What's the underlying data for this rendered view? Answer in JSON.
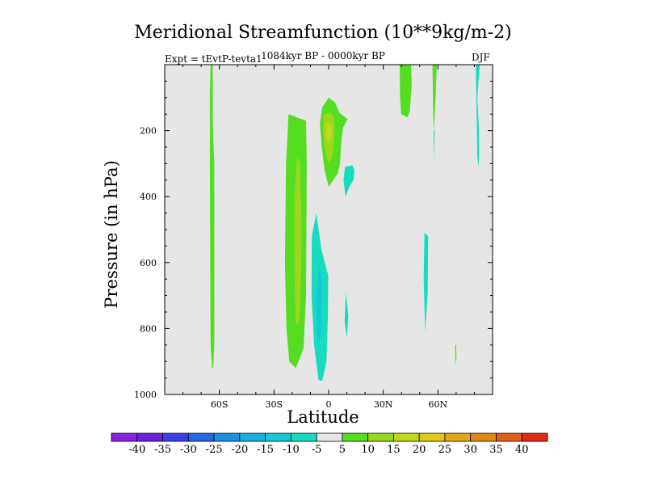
{
  "chart_data": {
    "type": "contour",
    "title": "Meridional Streamfunction (10**9kg/m-2)",
    "subtitle_left": "Expt = tEvtP-tevta1",
    "subtitle_center": "1084kyr BP - 0000kyr BP",
    "subtitle_right": "DJF",
    "xlabel": "Latitude",
    "ylabel": "Pressure (in hPa)",
    "xlim": [
      -90,
      90
    ],
    "ylim": [
      1000,
      0
    ],
    "x_ticks": [
      {
        "value": -60,
        "label": "60S"
      },
      {
        "value": -30,
        "label": "30S"
      },
      {
        "value": 0,
        "label": "0"
      },
      {
        "value": 30,
        "label": "30N"
      },
      {
        "value": 60,
        "label": "60N"
      }
    ],
    "y_ticks": [
      {
        "value": 200,
        "label": "200"
      },
      {
        "value": 400,
        "label": "400"
      },
      {
        "value": 600,
        "label": "600"
      },
      {
        "value": 800,
        "label": "800"
      },
      {
        "value": 1000,
        "label": "1000"
      }
    ],
    "colorbar": {
      "levels": [
        -40,
        -35,
        -30,
        -25,
        -20,
        -15,
        -10,
        -5,
        5,
        10,
        15,
        20,
        25,
        30,
        35,
        40
      ],
      "colors": [
        "#8B1FE0",
        "#6A1FD8",
        "#3B3FE0",
        "#2266E0",
        "#1C8FE0",
        "#18AEE0",
        "#14C8D8",
        "#18DCC0",
        "#E6E6E6",
        "#55DD22",
        "#99D81C",
        "#C2D81A",
        "#E0C814",
        "#E0A818",
        "#E08818",
        "#E06018",
        "#E02A10"
      ]
    },
    "background": "#E6E6E6",
    "regions": [
      {
        "level": 5,
        "color": "#55DD22",
        "points": [
          [
            -64.8,
            0
          ],
          [
            -63.6,
            0
          ],
          [
            -63.6,
            180
          ],
          [
            -62.8,
            300
          ],
          [
            -62.8,
            850
          ],
          [
            -63.4,
            920
          ],
          [
            -64,
            920
          ],
          [
            -64.8,
            850
          ],
          [
            -65.2,
            300
          ],
          [
            -65.2,
            80
          ]
        ]
      },
      {
        "level": 5,
        "color": "#55DD22",
        "points": [
          [
            -22,
            150
          ],
          [
            -12.4,
            170
          ],
          [
            -12,
            300
          ],
          [
            -12.4,
            700
          ],
          [
            -13.8,
            860
          ],
          [
            -18,
            920
          ],
          [
            -21.6,
            900
          ],
          [
            -23.2,
            800
          ],
          [
            -24,
            600
          ],
          [
            -23.4,
            300
          ]
        ]
      },
      {
        "level": 10,
        "color": "#99D81C",
        "points": [
          [
            -17.4,
            280
          ],
          [
            -15.6,
            300
          ],
          [
            -14.8,
            500
          ],
          [
            -15.4,
            720
          ],
          [
            -16.6,
            790
          ],
          [
            -18.2,
            780
          ],
          [
            -18.8,
            600
          ],
          [
            -18.8,
            400
          ]
        ]
      },
      {
        "level": 5,
        "color": "#55DD22",
        "points": [
          [
            -3.6,
            130
          ],
          [
            0,
            100
          ],
          [
            3.6,
            115
          ],
          [
            5.8,
            145
          ],
          [
            10.4,
            165
          ],
          [
            8,
            190
          ],
          [
            7,
            230
          ],
          [
            6.2,
            300
          ],
          [
            5,
            330
          ],
          [
            2,
            355
          ],
          [
            0,
            370
          ],
          [
            -2.2,
            320
          ],
          [
            -3.8,
            250
          ],
          [
            -4.8,
            180
          ]
        ]
      },
      {
        "level": 10,
        "color": "#99D81C",
        "points": [
          [
            -2.6,
            150
          ],
          [
            1.2,
            145
          ],
          [
            3,
            160
          ],
          [
            3.2,
            220
          ],
          [
            2,
            280
          ],
          [
            0,
            300
          ],
          [
            -2,
            260
          ],
          [
            -3,
            200
          ]
        ]
      },
      {
        "level": 15,
        "color": "#C2D81A",
        "points": [
          [
            -1.6,
            180
          ],
          [
            1.6,
            180
          ],
          [
            1.8,
            220
          ],
          [
            0,
            240
          ],
          [
            -1.8,
            215
          ]
        ]
      },
      {
        "level": -5,
        "color": "#18DCC0",
        "points": [
          [
            -6.8,
            450
          ],
          [
            -4,
            560
          ],
          [
            -0.2,
            640
          ],
          [
            -0.4,
            760
          ],
          [
            -1.2,
            900
          ],
          [
            -3.6,
            960
          ],
          [
            -5.6,
            955
          ],
          [
            -8,
            850
          ],
          [
            -9.4,
            700
          ],
          [
            -9.2,
            520
          ]
        ]
      },
      {
        "level": -10,
        "color": "#14C8D8",
        "points": [
          [
            -5,
            610
          ],
          [
            -3.6,
            660
          ],
          [
            -4.4,
            820
          ],
          [
            -5.2,
            845
          ],
          [
            -6.2,
            820
          ],
          [
            -6.8,
            700
          ]
        ]
      },
      {
        "level": -5,
        "color": "#18DCC0",
        "points": [
          [
            9,
            310
          ],
          [
            13,
            305
          ],
          [
            14.2,
            320
          ],
          [
            13.6,
            350
          ],
          [
            11.4,
            370
          ],
          [
            9.2,
            400
          ],
          [
            8.2,
            350
          ]
        ]
      },
      {
        "level": -5,
        "color": "#18DCC0",
        "points": [
          [
            9.4,
            690
          ],
          [
            10.8,
            760
          ],
          [
            10,
            830
          ],
          [
            8.8,
            780
          ]
        ]
      },
      {
        "level": 5,
        "color": "#55DD22",
        "points": [
          [
            39,
            0
          ],
          [
            45.2,
            0
          ],
          [
            45.6,
            60
          ],
          [
            44.6,
            140
          ],
          [
            43.4,
            160
          ],
          [
            39.8,
            150
          ],
          [
            39.2,
            100
          ]
        ]
      },
      {
        "level": 5,
        "color": "#55DD22",
        "points": [
          [
            57,
            0
          ],
          [
            59.4,
            0
          ],
          [
            58.6,
            110
          ],
          [
            57.8,
            200
          ],
          [
            57.4,
            160
          ]
        ]
      },
      {
        "level": -5,
        "color": "#18DCC0",
        "points": [
          [
            57.6,
            200
          ],
          [
            58.2,
            200
          ],
          [
            57.8,
            290
          ]
        ]
      },
      {
        "level": -5,
        "color": "#18DCC0",
        "points": [
          [
            52.6,
            510
          ],
          [
            54.6,
            520
          ],
          [
            54.4,
            690
          ],
          [
            53,
            810
          ],
          [
            52.2,
            650
          ]
        ]
      },
      {
        "level": -5,
        "color": "#18DCC0",
        "points": [
          [
            80.8,
            0
          ],
          [
            83,
            0
          ],
          [
            81.6,
            100
          ],
          [
            82.6,
            200
          ],
          [
            82.4,
            310
          ],
          [
            81.6,
            280
          ],
          [
            81.2,
            140
          ]
        ]
      },
      {
        "level": 5,
        "color": "#55DD22",
        "points": [
          [
            69.4,
            850
          ],
          [
            70,
            850
          ],
          [
            70.2,
            890
          ],
          [
            69.6,
            910
          ]
        ]
      }
    ]
  }
}
